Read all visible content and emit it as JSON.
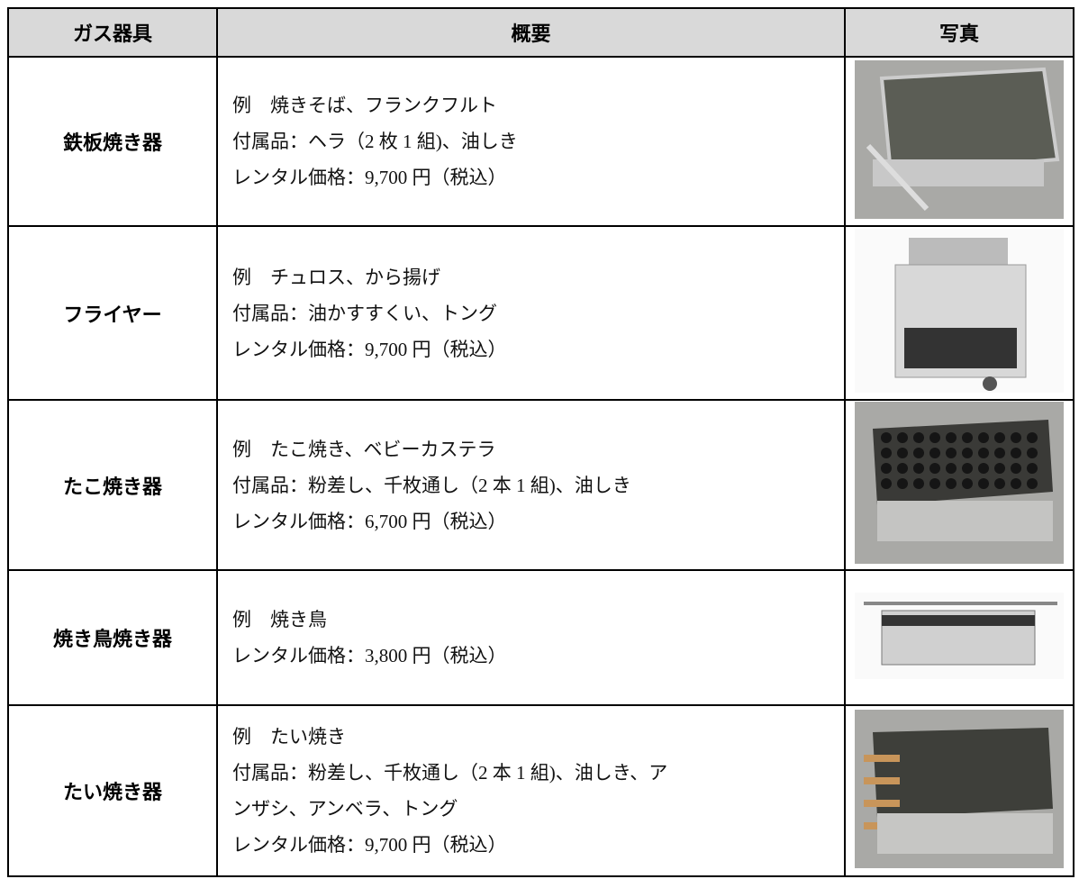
{
  "table": {
    "header": [
      "ガス器具",
      "概要",
      "写真"
    ],
    "rows": [
      {
        "name": "鉄板焼き器",
        "lines": [
          "例　焼きそば、フランクフルト",
          "付属品：ヘラ（2 枚 1 組)、油しき",
          "レンタル価格：9,700 円（税込）"
        ]
      },
      {
        "name": "フライヤー",
        "lines": [
          "例　チュロス、から揚げ",
          "付属品：油かすすくい、トング",
          "レンタル価格：9,700 円（税込）"
        ]
      },
      {
        "name": "たこ焼き器",
        "lines": [
          "例　たこ焼き、ベビーカステラ",
          "付属品：粉差し、千枚通し（2 本 1 組)、油しき",
          "レンタル価格：6,700 円（税込）"
        ]
      },
      {
        "name": "焼き鳥焼き器",
        "lines": [
          "例　焼き鳥",
          "レンタル価格：3,800 円（税込）"
        ]
      },
      {
        "name": "たい焼き器",
        "lines": [
          "例　たい焼き",
          "付属品：粉差し、千枚通し（2 本 1 組)、油しき、ア",
          "ンザシ、アンベラ、トング",
          "レンタル価格：9,700 円（税込）"
        ]
      }
    ]
  }
}
